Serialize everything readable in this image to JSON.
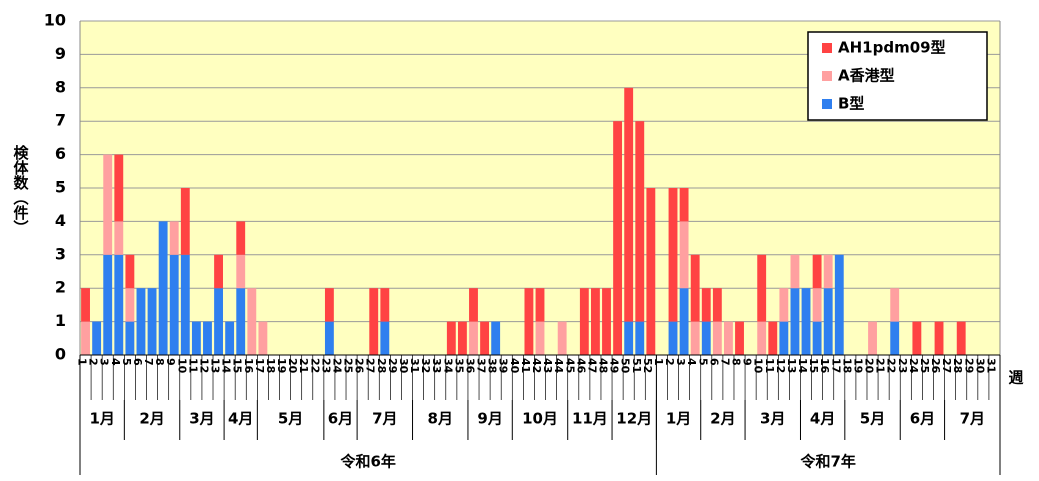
{
  "chart_data": {
    "type": "stacked_bar",
    "y_label": "検体数（件）",
    "x_label": "週",
    "categories": [
      "1",
      "2",
      "3",
      "4",
      "5",
      "6",
      "7",
      "8",
      "9",
      "10",
      "11",
      "12",
      "13",
      "14",
      "15",
      "16",
      "17",
      "18",
      "19",
      "20",
      "21",
      "22",
      "23",
      "24",
      "25",
      "26",
      "27",
      "28",
      "29",
      "30",
      "31",
      "32",
      "33",
      "34",
      "35",
      "36",
      "37",
      "38",
      "39",
      "40",
      "41",
      "42",
      "43",
      "44",
      "45",
      "46",
      "47",
      "48",
      "49",
      "50",
      "51",
      "52",
      "1",
      "2",
      "3",
      "4",
      "5",
      "6",
      "7",
      "8",
      "9",
      "10",
      "11",
      "12",
      "13",
      "14",
      "15",
      "16",
      "17",
      "18",
      "19",
      "20",
      "21",
      "22",
      "23",
      "24",
      "25",
      "26",
      "27",
      "28",
      "29",
      "30",
      "31"
    ],
    "series": [
      {
        "name": "AH1pdm09型",
        "color": "#ff4343",
        "values": [
          1,
          0,
          0,
          2,
          1,
          0,
          0,
          0,
          0,
          2,
          0,
          0,
          1,
          0,
          1,
          0,
          0,
          0,
          0,
          0,
          0,
          0,
          1,
          0,
          0,
          0,
          2,
          1,
          0,
          0,
          0,
          0,
          0,
          1,
          1,
          1,
          1,
          0,
          0,
          0,
          2,
          1,
          0,
          0,
          0,
          2,
          2,
          2,
          7,
          7,
          6,
          5,
          0,
          4,
          1,
          2,
          1,
          1,
          0,
          1,
          0,
          2,
          1,
          0,
          0,
          0,
          1,
          0,
          0,
          0,
          0,
          0,
          0,
          0,
          0,
          1,
          0,
          1,
          0,
          1,
          0,
          0,
          0
        ]
      },
      {
        "name": "A香港型",
        "color": "#ffa0a0",
        "values": [
          1,
          0,
          3,
          1,
          1,
          0,
          0,
          0,
          1,
          0,
          0,
          0,
          0,
          0,
          1,
          2,
          1,
          0,
          0,
          0,
          0,
          0,
          0,
          0,
          0,
          0,
          0,
          0,
          0,
          0,
          0,
          0,
          0,
          0,
          0,
          1,
          0,
          0,
          0,
          0,
          0,
          1,
          0,
          1,
          0,
          0,
          0,
          0,
          0,
          0,
          0,
          0,
          0,
          0,
          2,
          1,
          0,
          1,
          1,
          0,
          0,
          1,
          0,
          1,
          1,
          0,
          1,
          1,
          0,
          0,
          0,
          1,
          0,
          1,
          0,
          0,
          0,
          0,
          0,
          0,
          0,
          0,
          0
        ]
      },
      {
        "name": "B型",
        "color": "#2f7fef",
        "values": [
          0,
          1,
          3,
          3,
          1,
          2,
          2,
          4,
          3,
          3,
          1,
          1,
          2,
          1,
          2,
          0,
          0,
          0,
          0,
          0,
          0,
          0,
          1,
          0,
          0,
          0,
          0,
          1,
          0,
          0,
          0,
          0,
          0,
          0,
          0,
          0,
          0,
          1,
          0,
          0,
          0,
          0,
          0,
          0,
          0,
          0,
          0,
          0,
          0,
          1,
          1,
          0,
          0,
          1,
          2,
          0,
          1,
          0,
          0,
          0,
          0,
          0,
          0,
          1,
          2,
          2,
          1,
          2,
          3,
          0,
          0,
          0,
          0,
          1,
          0,
          0,
          0,
          0,
          0,
          0,
          0,
          0,
          0
        ]
      }
    ],
    "months": [
      "1月",
      "2月",
      "3月",
      "4月",
      "5月",
      "6月",
      "7月",
      "8月",
      "9月",
      "10月",
      "11月",
      "12月",
      "1月",
      "2月",
      "3月",
      "4月",
      "5月",
      "6月",
      "7月"
    ],
    "years": [
      "令和6年",
      "令和7年"
    ],
    "ylim": [
      0,
      10
    ],
    "yticks": [
      0,
      1,
      2,
      3,
      4,
      5,
      6,
      7,
      8,
      9,
      10
    ],
    "grid": true,
    "legend": "upper right"
  }
}
